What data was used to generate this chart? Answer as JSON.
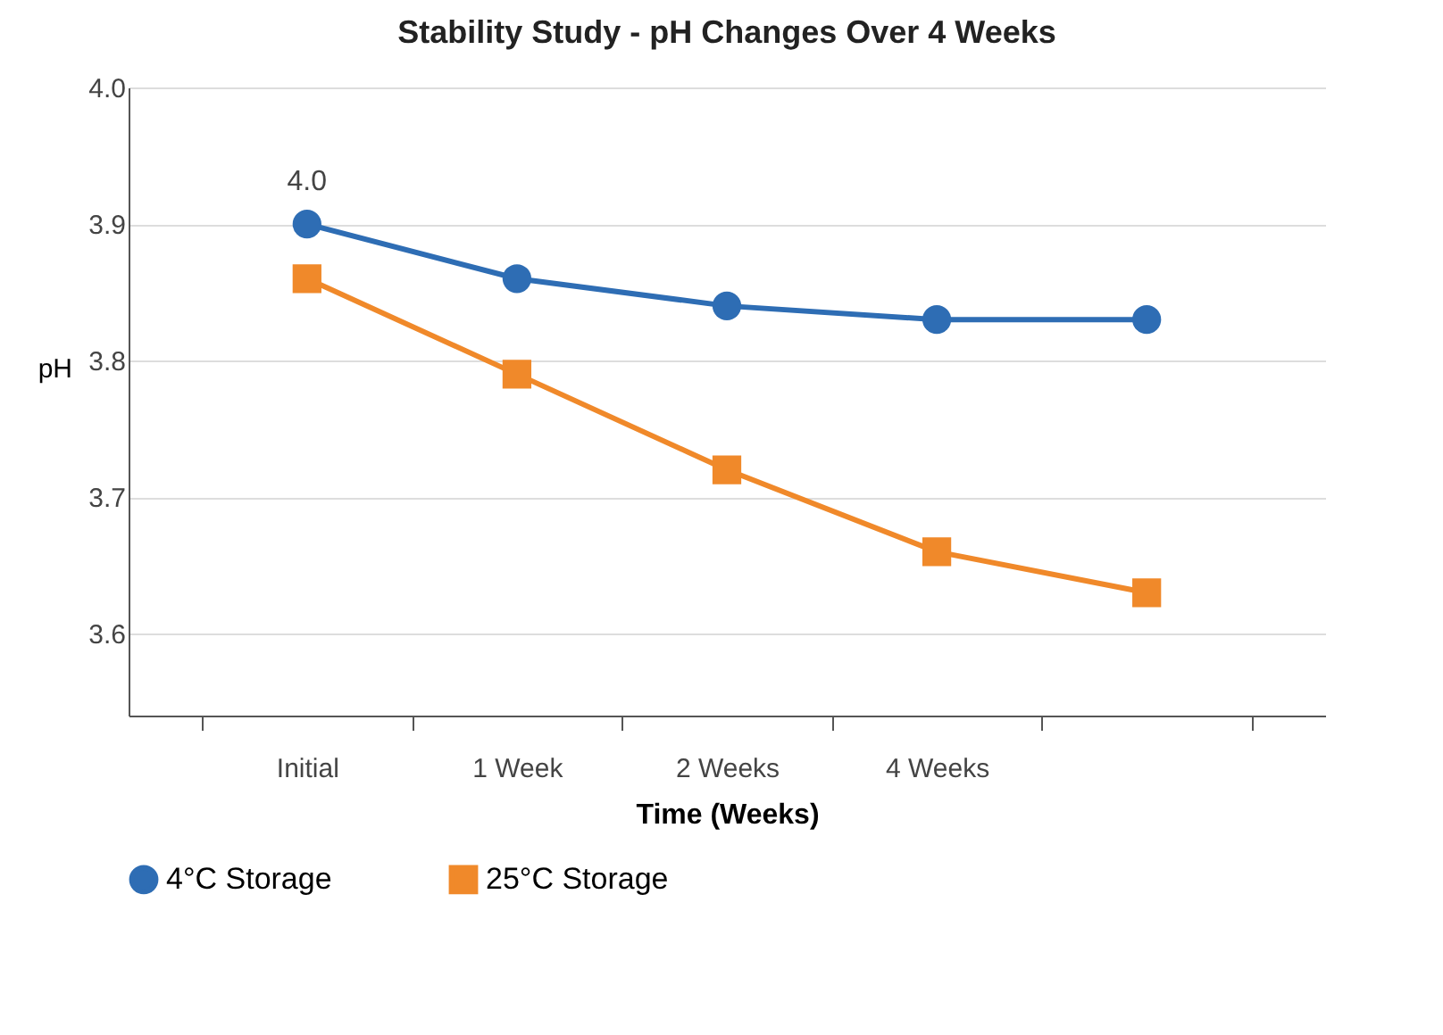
{
  "chart_data": {
    "type": "line",
    "title": "Stability Study - pH Changes Over 4 Weeks",
    "xlabel": "Time (Weeks)",
    "ylabel": "pH",
    "categories": [
      "Initial",
      "1 Week",
      "2 Weeks",
      "4 Weeks",
      null
    ],
    "series": [
      {
        "name": "4°C Storage",
        "color": "#2e6db4",
        "marker": "circle",
        "values": [
          3.9,
          3.86,
          3.84,
          3.83,
          3.83
        ]
      },
      {
        "name": "25°C Storage",
        "color": "#f0892a",
        "marker": "square",
        "values": [
          3.86,
          3.79,
          3.72,
          3.66,
          3.63
        ]
      }
    ],
    "ylim": [
      3.54,
      4.0
    ],
    "yticks": [
      {
        "value": 3.54,
        "label": null
      },
      {
        "value": 3.6,
        "label": "3.6"
      },
      {
        "value": 3.7,
        "label": "3.7"
      },
      {
        "value": 3.8,
        "label": "3.8"
      },
      {
        "value": 3.9,
        "label": "3.9"
      },
      {
        "value": 4.0,
        "label": "4.0"
      }
    ],
    "grid": "y",
    "legend": "bottom",
    "line_style": "solid",
    "annotations": [
      {
        "text": "4.0",
        "x": "Initial",
        "y": 3.9
      }
    ]
  }
}
